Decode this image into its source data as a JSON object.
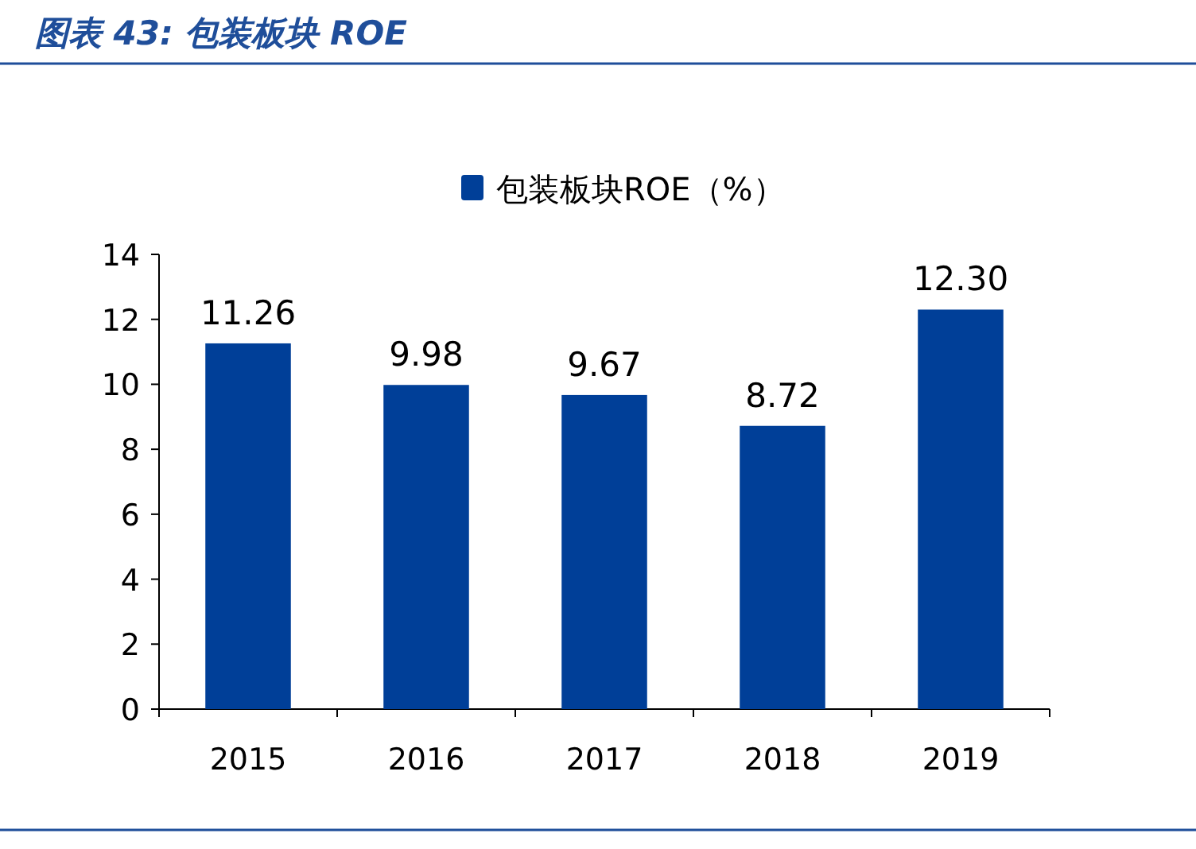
{
  "chart_data": {
    "type": "bar",
    "title": "图表 43: 包装板块 ROE",
    "categories": [
      "2015",
      "2016",
      "2017",
      "2018",
      "2019"
    ],
    "series": [
      {
        "name": "包装板块ROE（%）",
        "color": "#003f98",
        "values": [
          11.26,
          9.98,
          9.67,
          8.72,
          12.3
        ],
        "value_labels": [
          "11.26",
          "9.98",
          "9.67",
          "8.72",
          "12.30"
        ]
      }
    ],
    "ylim": [
      0,
      14
    ],
    "yticks": [
      0,
      2,
      4,
      6,
      8,
      10,
      12,
      14
    ],
    "legend": "top",
    "grid": false
  }
}
